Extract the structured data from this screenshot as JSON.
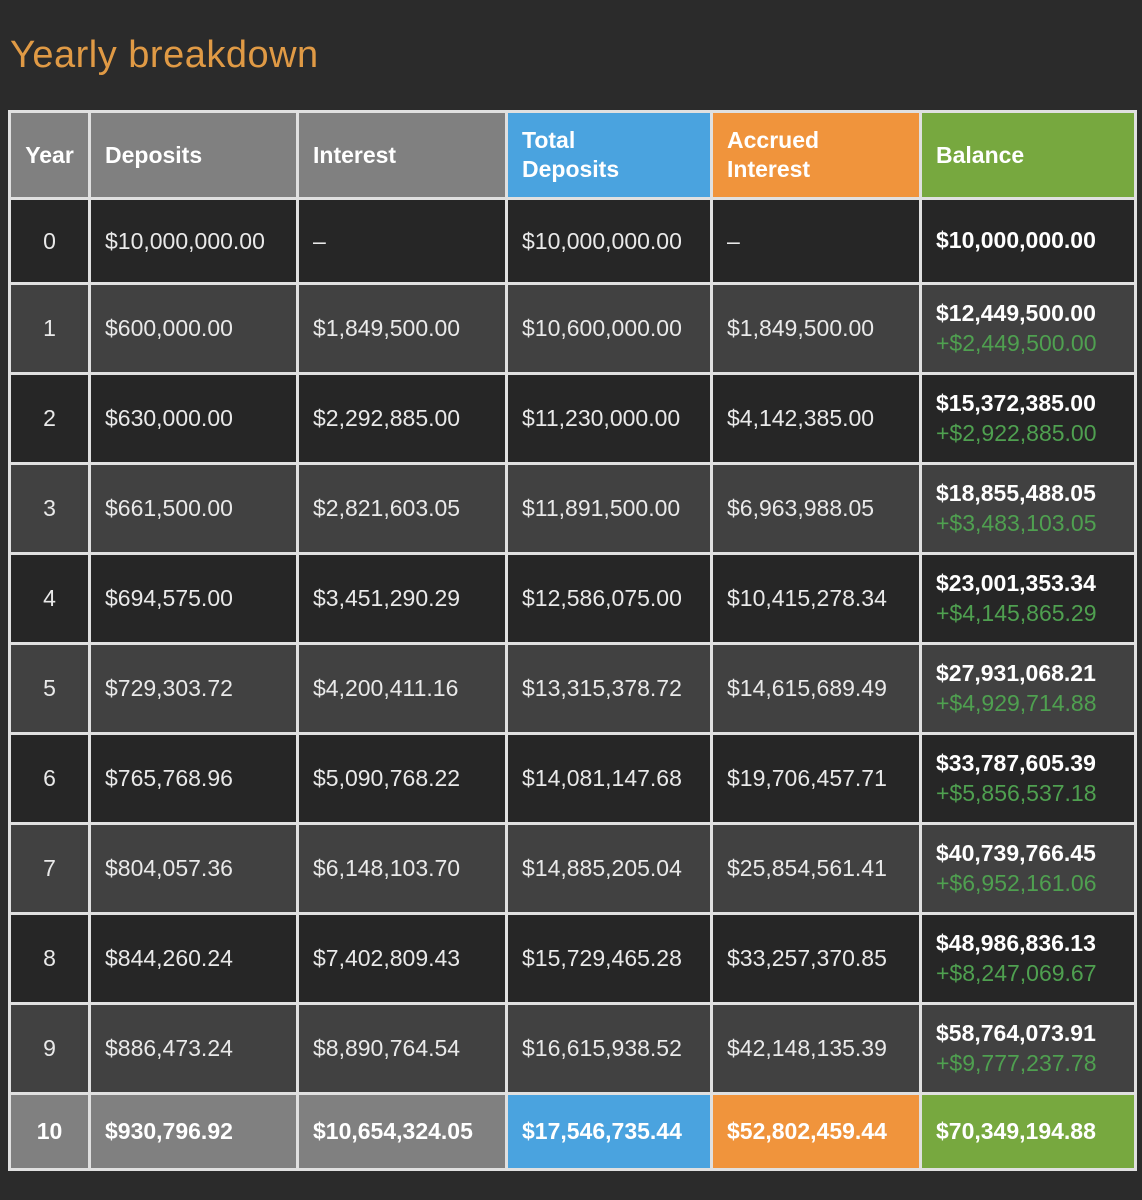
{
  "page": {
    "title": "Yearly breakdown"
  },
  "theme": {
    "background": "#2b2b2b",
    "title_color": "#e09a45",
    "header_gray": "#808080",
    "accent_blue": "#4aa3df",
    "accent_orange": "#f0943c",
    "accent_green": "#77a83f",
    "row_dark": "#262626",
    "row_light": "#414141",
    "grid_border": "#e0e0e0",
    "gain_text_green": "#4fa050"
  },
  "table": {
    "columns": [
      {
        "key": "year",
        "label": "Year",
        "color_class": "bg-gray",
        "wrap": false
      },
      {
        "key": "deposits",
        "label": "Deposits",
        "color_class": "bg-gray",
        "wrap": false
      },
      {
        "key": "interest",
        "label": "Interest",
        "color_class": "bg-gray",
        "wrap": false
      },
      {
        "key": "total_deposits",
        "label": "Total Deposits",
        "color_class": "bg-blue",
        "wrap": true
      },
      {
        "key": "accrued_interest",
        "label": "Accrued Interest",
        "color_class": "bg-orange",
        "wrap": true
      },
      {
        "key": "balance",
        "label": "Balance",
        "color_class": "bg-green",
        "wrap": false
      }
    ],
    "rows": [
      {
        "year": "0",
        "deposits": "$10,000,000.00",
        "interest": "–",
        "total_deposits": "$10,000,000.00",
        "accrued_interest": "–",
        "balance": "$10,000,000.00",
        "balance_change": "",
        "is_final": false
      },
      {
        "year": "1",
        "deposits": "$600,000.00",
        "interest": "$1,849,500.00",
        "total_deposits": "$10,600,000.00",
        "accrued_interest": "$1,849,500.00",
        "balance": "$12,449,500.00",
        "balance_change": "+$2,449,500.00",
        "is_final": false
      },
      {
        "year": "2",
        "deposits": "$630,000.00",
        "interest": "$2,292,885.00",
        "total_deposits": "$11,230,000.00",
        "accrued_interest": "$4,142,385.00",
        "balance": "$15,372,385.00",
        "balance_change": "+$2,922,885.00",
        "is_final": false
      },
      {
        "year": "3",
        "deposits": "$661,500.00",
        "interest": "$2,821,603.05",
        "total_deposits": "$11,891,500.00",
        "accrued_interest": "$6,963,988.05",
        "balance": "$18,855,488.05",
        "balance_change": "+$3,483,103.05",
        "is_final": false
      },
      {
        "year": "4",
        "deposits": "$694,575.00",
        "interest": "$3,451,290.29",
        "total_deposits": "$12,586,075.00",
        "accrued_interest": "$10,415,278.34",
        "balance": "$23,001,353.34",
        "balance_change": "+$4,145,865.29",
        "is_final": false
      },
      {
        "year": "5",
        "deposits": "$729,303.72",
        "interest": "$4,200,411.16",
        "total_deposits": "$13,315,378.72",
        "accrued_interest": "$14,615,689.49",
        "balance": "$27,931,068.21",
        "balance_change": "+$4,929,714.88",
        "is_final": false
      },
      {
        "year": "6",
        "deposits": "$765,768.96",
        "interest": "$5,090,768.22",
        "total_deposits": "$14,081,147.68",
        "accrued_interest": "$19,706,457.71",
        "balance": "$33,787,605.39",
        "balance_change": "+$5,856,537.18",
        "is_final": false
      },
      {
        "year": "7",
        "deposits": "$804,057.36",
        "interest": "$6,148,103.70",
        "total_deposits": "$14,885,205.04",
        "accrued_interest": "$25,854,561.41",
        "balance": "$40,739,766.45",
        "balance_change": "+$6,952,161.06",
        "is_final": false
      },
      {
        "year": "8",
        "deposits": "$844,260.24",
        "interest": "$7,402,809.43",
        "total_deposits": "$15,729,465.28",
        "accrued_interest": "$33,257,370.85",
        "balance": "$48,986,836.13",
        "balance_change": "+$8,247,069.67",
        "is_final": false
      },
      {
        "year": "9",
        "deposits": "$886,473.24",
        "interest": "$8,890,764.54",
        "total_deposits": "$16,615,938.52",
        "accrued_interest": "$42,148,135.39",
        "balance": "$58,764,073.91",
        "balance_change": "+$9,777,237.78",
        "is_final": false
      },
      {
        "year": "10",
        "deposits": "$930,796.92",
        "interest": "$10,654,324.05",
        "total_deposits": "$17,546,735.44",
        "accrued_interest": "$52,802,459.44",
        "balance": "$70,349,194.88",
        "balance_change": "",
        "is_final": true
      }
    ]
  }
}
